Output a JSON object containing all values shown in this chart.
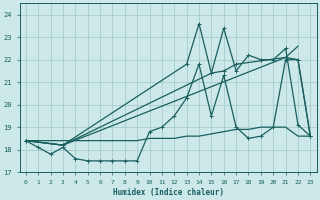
{
  "xlabel": "Humidex (Indice chaleur)",
  "bg_color": "#cce8e8",
  "grid_color": "#aacccc",
  "line_color": "#1a5f5f",
  "xlim": [
    -0.5,
    23.5
  ],
  "ylim": [
    17.0,
    24.5
  ],
  "yticks": [
    17,
    18,
    19,
    20,
    21,
    22,
    23,
    24
  ],
  "xticks": [
    0,
    1,
    2,
    3,
    4,
    5,
    6,
    7,
    8,
    9,
    10,
    11,
    12,
    13,
    14,
    15,
    16,
    17,
    18,
    19,
    20,
    21,
    22,
    23
  ],
  "line_flat_x": [
    0,
    1,
    2,
    3,
    4,
    5,
    6,
    7,
    8,
    9,
    10,
    11,
    12,
    13,
    14,
    15,
    16,
    17,
    18,
    19,
    20,
    21,
    22,
    23
  ],
  "line_flat_y": [
    18.4,
    18.4,
    18.4,
    18.4,
    18.4,
    18.4,
    18.4,
    18.4,
    18.4,
    18.4,
    18.5,
    18.5,
    18.5,
    18.6,
    18.6,
    18.7,
    18.8,
    18.9,
    18.9,
    19.0,
    19.0,
    19.0,
    18.6,
    18.6
  ],
  "line_wavy_x": [
    0,
    1,
    2,
    3,
    4,
    5,
    6,
    7,
    8,
    9,
    10,
    11,
    12,
    13,
    14,
    15,
    16,
    17,
    18,
    19,
    20,
    21,
    22,
    23
  ],
  "line_wavy_y": [
    18.4,
    18.1,
    17.8,
    18.1,
    17.6,
    17.5,
    17.5,
    17.5,
    17.5,
    17.5,
    18.8,
    19.0,
    19.5,
    20.3,
    21.8,
    19.5,
    21.3,
    19.0,
    18.5,
    18.6,
    19.0,
    22.0,
    22.0,
    18.6
  ],
  "line_spike1_x": [
    0,
    3,
    13,
    14,
    15,
    16,
    17,
    21,
    22,
    23
  ],
  "line_spike1_y": [
    18.4,
    18.2,
    21.8,
    23.6,
    21.4,
    21.5,
    21.8,
    22.1,
    22.0,
    18.6
  ],
  "line_spike2_x": [
    0,
    3,
    15,
    16,
    17,
    18,
    19,
    20,
    21,
    22,
    23
  ],
  "line_spike2_y": [
    18.4,
    18.2,
    21.4,
    23.4,
    21.5,
    22.2,
    22.0,
    22.0,
    22.5,
    19.1,
    18.6
  ],
  "line_trend_x": [
    0,
    3,
    21,
    22
  ],
  "line_trend_y": [
    18.4,
    18.2,
    22.1,
    22.6
  ]
}
